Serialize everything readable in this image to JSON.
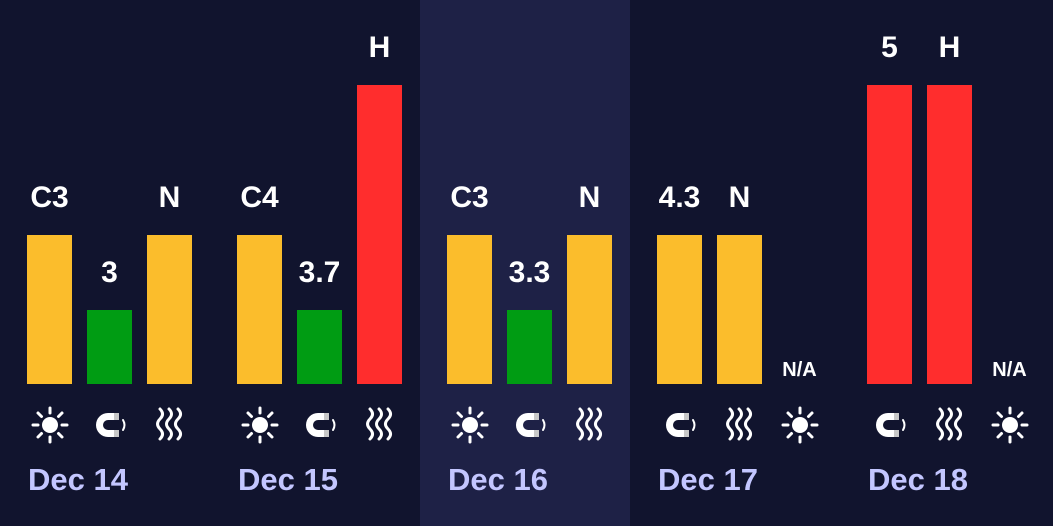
{
  "chart_data": {
    "type": "bar",
    "colors": {
      "yellow": "#fbbd2c",
      "green": "#009c13",
      "red": "#ff2d2d",
      "label": "#c3c6ff",
      "background": "#11142e",
      "highlight": "#1e2146"
    },
    "days": [
      {
        "date": "Dec 14",
        "highlight": false,
        "items": [
          {
            "icon": "sun-icon",
            "label": "C3",
            "level": 2,
            "color": "yellow"
          },
          {
            "icon": "magnet-icon",
            "label": "3",
            "level": 1,
            "color": "green"
          },
          {
            "icon": "heat-waves-icon",
            "label": "N",
            "level": 2,
            "color": "yellow"
          }
        ]
      },
      {
        "date": "Dec 15",
        "highlight": false,
        "items": [
          {
            "icon": "sun-icon",
            "label": "C4",
            "level": 2,
            "color": "yellow"
          },
          {
            "icon": "magnet-icon",
            "label": "3.7",
            "level": 1,
            "color": "green"
          },
          {
            "icon": "heat-waves-icon",
            "label": "H",
            "level": 4,
            "color": "red"
          }
        ]
      },
      {
        "date": "Dec 16",
        "highlight": true,
        "items": [
          {
            "icon": "sun-icon",
            "label": "C3",
            "level": 2,
            "color": "yellow"
          },
          {
            "icon": "magnet-icon",
            "label": "3.3",
            "level": 1,
            "color": "green"
          },
          {
            "icon": "heat-waves-icon",
            "label": "N",
            "level": 2,
            "color": "yellow"
          }
        ]
      },
      {
        "date": "Dec 17",
        "highlight": false,
        "items": [
          {
            "icon": "magnet-icon",
            "label": "4.3",
            "level": 2,
            "color": "yellow"
          },
          {
            "icon": "heat-waves-icon",
            "label": "N",
            "level": 2,
            "color": "yellow"
          },
          {
            "icon": "sun-icon",
            "label": "N/A",
            "level": 0,
            "color": ""
          }
        ]
      },
      {
        "date": "Dec 18",
        "highlight": false,
        "items": [
          {
            "icon": "magnet-icon",
            "label": "5",
            "level": 4,
            "color": "red"
          },
          {
            "icon": "heat-waves-icon",
            "label": "H",
            "level": 4,
            "color": "red"
          },
          {
            "icon": "sun-icon",
            "label": "N/A",
            "level": 0,
            "color": ""
          }
        ]
      }
    ]
  }
}
